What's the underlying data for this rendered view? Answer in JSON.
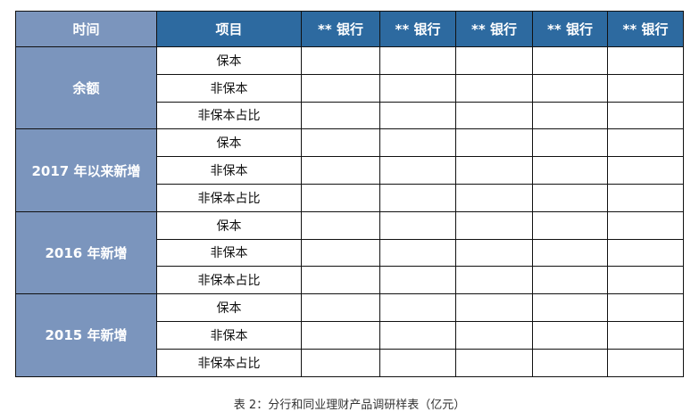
{
  "table": {
    "headers": [
      "时间",
      "项目",
      "** 银行",
      "** 银行",
      "** 银行",
      "** 银行",
      "** 银行"
    ],
    "groups": [
      {
        "label": "余额",
        "items": [
          "保本",
          "非保本",
          "非保本占比"
        ]
      },
      {
        "label": "2017 年以来新增",
        "items": [
          "保本",
          "非保本",
          "非保本占比"
        ]
      },
      {
        "label": "2016 年新增",
        "items": [
          "保本",
          "非保本",
          "非保本占比"
        ]
      },
      {
        "label": "2015 年新增",
        "items": [
          "保本",
          "非保本",
          "非保本占比"
        ]
      }
    ],
    "colors": {
      "header": "#2d6aa0",
      "time_column": "#7b95bd"
    }
  },
  "caption": "表 2：分行和同业理财产品调研样表（亿元）"
}
